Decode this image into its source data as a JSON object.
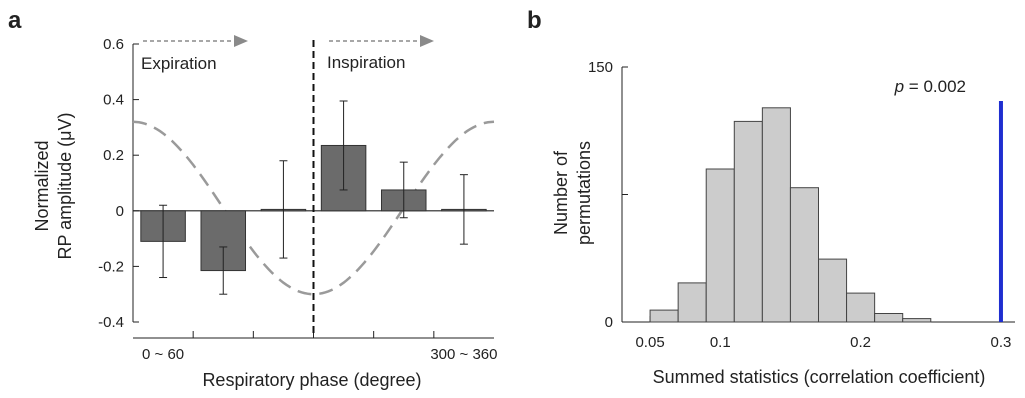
{
  "panels": {
    "a": {
      "letter": "a"
    },
    "b": {
      "letter": "b"
    }
  },
  "colors": {
    "bar_a": "#6b6b6b",
    "bar_b": "#cccccc",
    "curve": "#9a9a9a",
    "arrow": "#8a8a8a",
    "observed": "#1f2ed0"
  },
  "chart_data": [
    {
      "type": "bar",
      "panel": "a",
      "title": "",
      "xlabel": "Respiratory phase (degree)",
      "ylabel_lines": [
        "Normalized",
        "RP amplitude (μV)"
      ],
      "ylim": [
        -0.4,
        0.6
      ],
      "yticks": [
        0.6,
        0.4,
        0.2,
        0,
        -0.2,
        -0.4
      ],
      "ytick_labels": [
        "0.6",
        "0.4",
        "0.2",
        "0",
        "-0.2",
        "-0.4"
      ],
      "xlim": [
        0,
        360
      ],
      "x_tick_positions": [
        30,
        330
      ],
      "x_tick_labels": [
        "0 ~ 60",
        "300 ~ 360"
      ],
      "x_minor_ticks": [
        60,
        120,
        180,
        240,
        300
      ],
      "categories_deg": [
        30,
        90,
        150,
        210,
        270,
        330
      ],
      "values": [
        -0.11,
        -0.215,
        0.005,
        0.235,
        0.075,
        0.005
      ],
      "errors": [
        0.13,
        0.085,
        0.175,
        0.16,
        0.1,
        0.125
      ],
      "phase_divider_deg": 180,
      "curve": {
        "shape": "cosine",
        "max": 0.32,
        "min": -0.3
      },
      "phase_labels": {
        "expiration": "Expiration",
        "inspiration": "Inspiration"
      }
    },
    {
      "type": "bar",
      "panel": "b",
      "title": "",
      "xlabel": "Summed statistics (correlation coefficient)",
      "ylabel_lines": [
        "Number of",
        "permutations"
      ],
      "xlim": [
        0.03,
        0.31
      ],
      "ylim": [
        0,
        150
      ],
      "yticks": [
        0,
        150
      ],
      "ytick_labels": [
        "0",
        "150"
      ],
      "xticks": [
        0.05,
        0.1,
        0.2,
        0.3
      ],
      "xtick_labels": [
        "0.05",
        "0.1",
        "0.2",
        "0.3"
      ],
      "bin_width": 0.02,
      "bin_starts": [
        0.05,
        0.07,
        0.09,
        0.11,
        0.13,
        0.15,
        0.17,
        0.19,
        0.21,
        0.23
      ],
      "values": [
        7,
        23,
        90,
        118,
        126,
        79,
        37,
        17,
        5,
        2
      ],
      "observed_x": 0.3,
      "annotation_p": "p",
      "annotation_rest": " = 0.002"
    }
  ]
}
